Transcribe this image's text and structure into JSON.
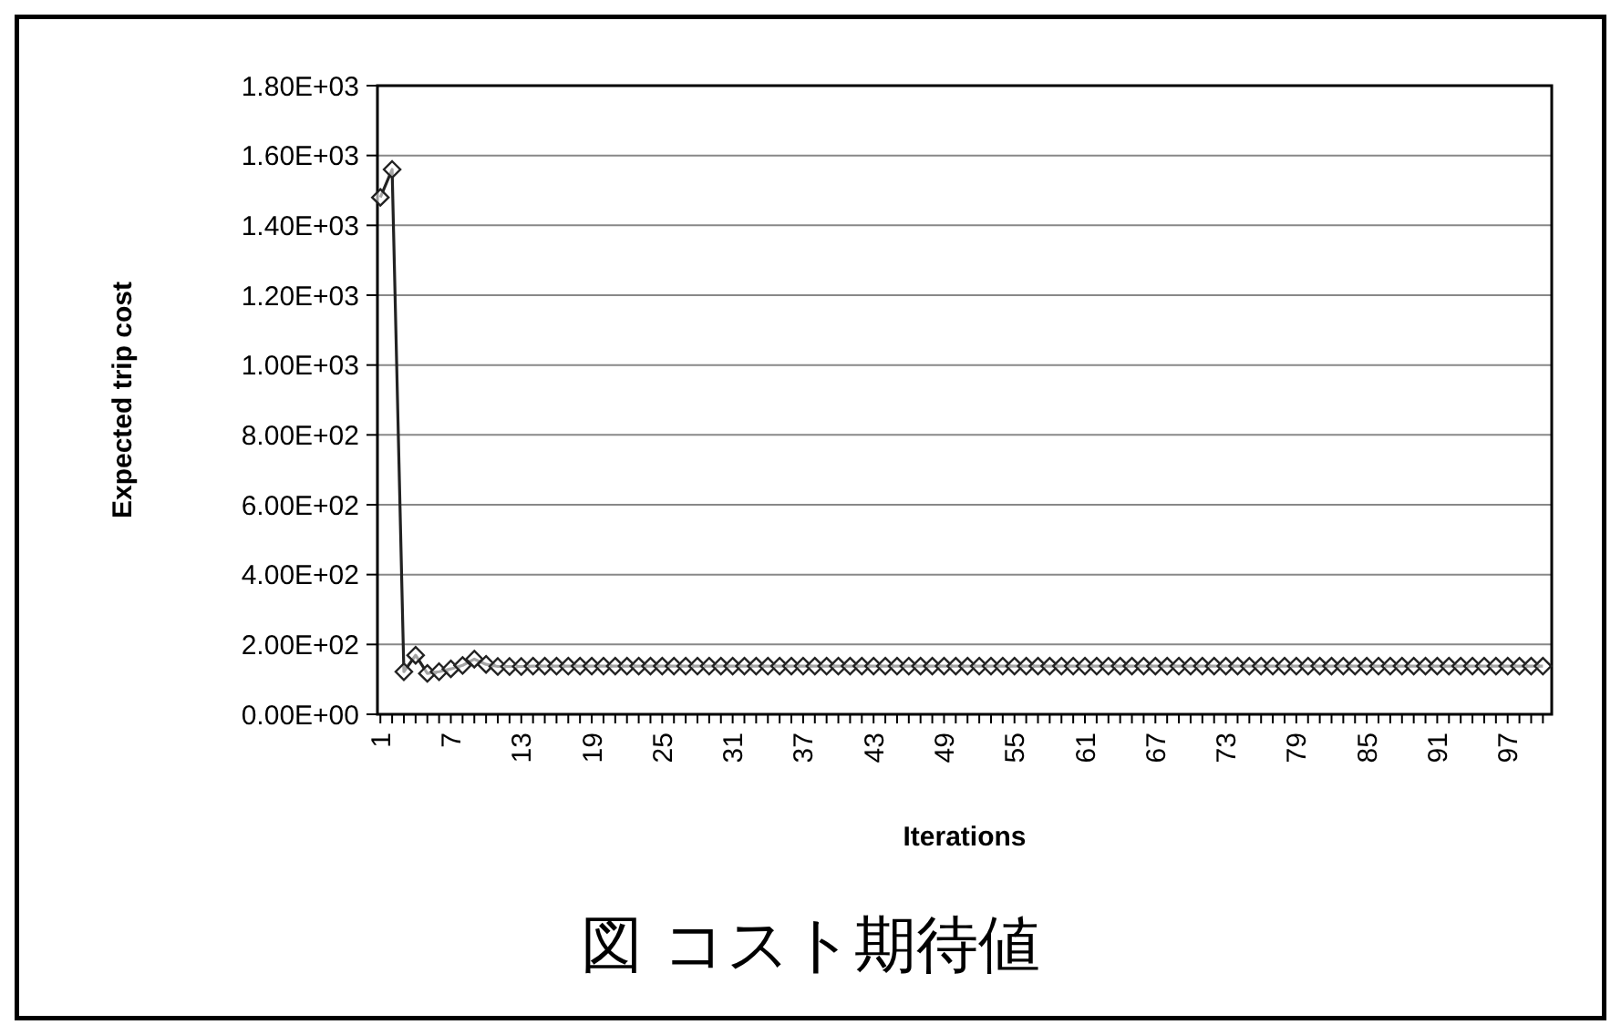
{
  "chart_data": {
    "type": "line",
    "title": "図 コスト期待値",
    "xlabel": "Iterations",
    "ylabel": "Expected trip cost",
    "categories": [
      "1",
      null,
      null,
      null,
      null,
      null,
      "7",
      null,
      null,
      null,
      null,
      null,
      "13",
      null,
      null,
      null,
      null,
      null,
      "19",
      null,
      null,
      null,
      null,
      null,
      "25",
      null,
      null,
      null,
      null,
      null,
      "31",
      null,
      null,
      null,
      null,
      null,
      "37",
      null,
      null,
      null,
      null,
      null,
      "43",
      null,
      null,
      null,
      null,
      null,
      "49",
      null,
      null,
      null,
      null,
      null,
      "55",
      null,
      null,
      null,
      null,
      null,
      "61",
      null,
      null,
      null,
      null,
      null,
      "67",
      null,
      null,
      null,
      null,
      null,
      "73",
      null,
      null,
      null,
      null,
      null,
      "79",
      null,
      null,
      null,
      null,
      null,
      "85",
      null,
      null,
      null,
      null,
      null,
      "91",
      null,
      null,
      null,
      null,
      null,
      "97",
      null,
      null,
      null
    ],
    "series": [
      {
        "color": "#222222",
        "values": [
          1480,
          1560,
          122,
          169,
          117,
          122,
          130,
          140,
          158,
          143,
          137,
          137,
          137,
          138,
          138,
          138,
          138,
          138,
          138,
          138,
          138,
          138,
          138,
          138,
          138,
          138,
          138,
          138,
          138,
          138,
          138,
          138,
          138,
          138,
          138,
          138,
          138,
          138,
          138,
          138,
          138,
          138,
          138,
          138,
          138,
          138,
          138,
          138,
          138,
          138,
          138,
          138,
          138,
          138,
          138,
          138,
          138,
          138,
          138,
          138,
          138,
          138,
          138,
          138,
          138,
          138,
          138,
          138,
          138,
          138,
          138,
          138,
          138,
          138,
          138,
          138,
          138,
          138,
          138,
          138,
          138,
          138,
          138,
          138,
          138,
          138,
          138,
          138,
          138,
          138,
          138,
          138,
          138,
          138,
          138,
          138,
          138,
          138,
          138,
          138
        ]
      }
    ],
    "ylim": [
      0,
      1800
    ],
    "yticks": [
      {
        "value": 0,
        "label": "0.00E+00"
      },
      {
        "value": 200,
        "label": "2.00E+02"
      },
      {
        "value": 400,
        "label": "4.00E+02"
      },
      {
        "value": 600,
        "label": "6.00E+02"
      },
      {
        "value": 800,
        "label": "8.00E+02"
      },
      {
        "value": 1000,
        "label": "1.00E+03"
      },
      {
        "value": 1200,
        "label": "1.20E+03"
      },
      {
        "value": 1400,
        "label": "1.40E+03"
      },
      {
        "value": 1600,
        "label": "1.60E+03"
      },
      {
        "value": 1800,
        "label": "1.80E+03"
      }
    ],
    "grid": "y",
    "marker": "diamond",
    "line_style": "solid"
  }
}
